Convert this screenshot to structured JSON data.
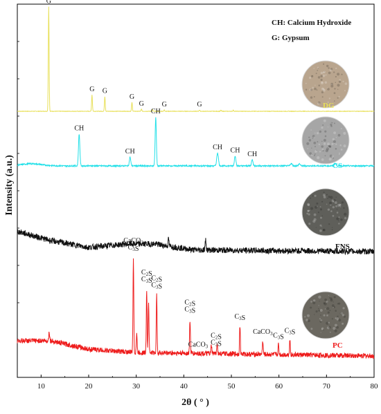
{
  "chart_data": {
    "type": "line",
    "xlabel": "2θ ( ° )",
    "ylabel": "Intensity (a.u.)",
    "xlim": [
      5,
      80
    ],
    "xticks": [
      10,
      20,
      30,
      40,
      50,
      60,
      70,
      80
    ],
    "y_tick_labels_shown": false,
    "legend": {
      "placement": "top-right",
      "entries": [
        "CH: Calcium Hydroxide",
        "G: Gypsum"
      ]
    },
    "colors": {
      "DG": "#e8e05a",
      "CS": "#22e0e8",
      "FNS": "#111111",
      "PC": "#ee1c1c"
    },
    "series": [
      {
        "name": "DG",
        "baseline": 0.0,
        "noise": 0.03,
        "peaks": [
          {
            "x": 11.6,
            "h": 12.4,
            "w": 0.12
          },
          {
            "x": 20.7,
            "h": 1.95,
            "w": 0.12
          },
          {
            "x": 23.4,
            "h": 1.75,
            "w": 0.12
          },
          {
            "x": 29.1,
            "h": 1.05,
            "w": 0.12
          },
          {
            "x": 31.1,
            "h": 0.25,
            "w": 0.12
          },
          {
            "x": 33.4,
            "h": 0.2,
            "w": 0.12
          },
          {
            "x": 35.9,
            "h": 0.15,
            "w": 0.12
          },
          {
            "x": 43.3,
            "h": 0.15,
            "w": 0.12
          },
          {
            "x": 47.8,
            "h": 0.12,
            "w": 0.12
          },
          {
            "x": 50.4,
            "h": 0.12,
            "w": 0.12
          }
        ]
      },
      {
        "name": "CS",
        "baseline": 0.0,
        "noise": 0.08,
        "hump": {
          "x": 8,
          "h": 0.25,
          "w": 3
        },
        "peaks": [
          {
            "x": 18.0,
            "h": 3.8,
            "w": 0.2
          },
          {
            "x": 28.7,
            "h": 1.05,
            "w": 0.2
          },
          {
            "x": 34.1,
            "h": 5.8,
            "w": 0.18
          },
          {
            "x": 47.1,
            "h": 1.55,
            "w": 0.25
          },
          {
            "x": 50.8,
            "h": 1.2,
            "w": 0.22
          },
          {
            "x": 54.4,
            "h": 0.75,
            "w": 0.22
          },
          {
            "x": 62.6,
            "h": 0.3,
            "w": 0.25
          },
          {
            "x": 64.3,
            "h": 0.25,
            "w": 0.25
          },
          {
            "x": 71.8,
            "h": 0.3,
            "w": 0.3
          }
        ]
      },
      {
        "name": "FNS",
        "baseline": 0.0,
        "noise": 0.35,
        "slope": [
          [
            5,
            2.4
          ],
          [
            12,
            1.3
          ],
          [
            20,
            0.5
          ],
          [
            28,
            0.9
          ],
          [
            34,
            0.9
          ],
          [
            42,
            0.2
          ],
          [
            80,
            0.0
          ]
        ],
        "peaks": [
          {
            "x": 36.8,
            "h": 0.9,
            "w": 0.12
          },
          {
            "x": 44.6,
            "h": 1.2,
            "w": 0.15
          },
          {
            "x": 64.9,
            "h": 0.3,
            "w": 0.15
          }
        ]
      },
      {
        "name": "PC",
        "baseline": 0.0,
        "noise": 0.3,
        "slope": [
          [
            5,
            1.8
          ],
          [
            12,
            1.8
          ],
          [
            20,
            0.8
          ],
          [
            30,
            0.4
          ],
          [
            80,
            0.0
          ]
        ],
        "peaks": [
          {
            "x": 11.7,
            "h": 1.2,
            "w": 0.12
          },
          {
            "x": 29.4,
            "h": 11.2,
            "w": 0.12
          },
          {
            "x": 30.1,
            "h": 2.3,
            "w": 0.12
          },
          {
            "x": 32.2,
            "h": 7.5,
            "w": 0.12
          },
          {
            "x": 32.6,
            "h": 6.0,
            "w": 0.12
          },
          {
            "x": 34.3,
            "h": 6.8,
            "w": 0.12
          },
          {
            "x": 41.3,
            "h": 4.0,
            "w": 0.12
          },
          {
            "x": 45.8,
            "h": 1.0,
            "w": 0.12
          },
          {
            "x": 47.0,
            "h": 1.4,
            "w": 0.12
          },
          {
            "x": 51.8,
            "h": 3.4,
            "w": 0.12
          },
          {
            "x": 56.6,
            "h": 1.6,
            "w": 0.12
          },
          {
            "x": 59.9,
            "h": 1.2,
            "w": 0.12
          },
          {
            "x": 62.3,
            "h": 1.8,
            "w": 0.12
          }
        ]
      }
    ],
    "series_labels": [
      {
        "series": "DG",
        "text": "DG"
      },
      {
        "series": "CS",
        "text": "CS"
      },
      {
        "series": "FNS",
        "text": "FNS"
      },
      {
        "series": "PC",
        "text": "PC"
      }
    ],
    "peak_annotations": [
      {
        "series": "DG",
        "x": 11.6,
        "text": "G"
      },
      {
        "series": "DG",
        "x": 20.7,
        "text": "G"
      },
      {
        "series": "DG",
        "x": 23.4,
        "text": "G"
      },
      {
        "series": "DG",
        "x": 29.1,
        "text": "G"
      },
      {
        "series": "DG",
        "x": 31.1,
        "text": "G"
      },
      {
        "series": "DG",
        "x": 35.9,
        "text": "G"
      },
      {
        "series": "DG",
        "x": 43.3,
        "text": "G"
      },
      {
        "series": "CS",
        "x": 18.0,
        "text": "CH"
      },
      {
        "series": "CS",
        "x": 28.7,
        "text": "CH"
      },
      {
        "series": "CS",
        "x": 34.1,
        "text": "CH"
      },
      {
        "series": "CS",
        "x": 47.1,
        "text": "CH"
      },
      {
        "series": "CS",
        "x": 50.8,
        "text": "CH"
      },
      {
        "series": "CS",
        "x": 54.4,
        "text": "CH"
      },
      {
        "series": "PC",
        "x": 29.4,
        "text": [
          "CaCO3",
          "C3S"
        ]
      },
      {
        "series": "PC",
        "x": 32.2,
        "text": [
          "C2S",
          "C3S"
        ]
      },
      {
        "series": "PC",
        "x": 34.3,
        "text": [
          "C2S",
          "C3S"
        ]
      },
      {
        "series": "PC",
        "x": 41.3,
        "text": [
          "C2S",
          "C3S"
        ]
      },
      {
        "series": "PC",
        "x": 43.0,
        "text": "CaCO3"
      },
      {
        "series": "PC",
        "x": 46.8,
        "text": [
          "C2S",
          "C3S"
        ]
      },
      {
        "series": "PC",
        "x": 51.8,
        "text": "C3S"
      },
      {
        "series": "PC",
        "x": 56.6,
        "text": "CaCO3"
      },
      {
        "series": "PC",
        "x": 59.9,
        "text": "C3S"
      },
      {
        "series": "PC",
        "x": 62.3,
        "text": "C3S"
      }
    ],
    "photos": [
      {
        "series": "DG",
        "color": "#b9a58e",
        "depicts": "beige powder sample"
      },
      {
        "series": "CS",
        "color": "#a6a6a6",
        "depicts": "light grey powder sample"
      },
      {
        "series": "FNS",
        "color": "#5f5f5a",
        "depicts": "dark grey powder sample"
      },
      {
        "series": "PC",
        "color": "#6b6860",
        "depicts": "grey powder sample"
      }
    ]
  }
}
